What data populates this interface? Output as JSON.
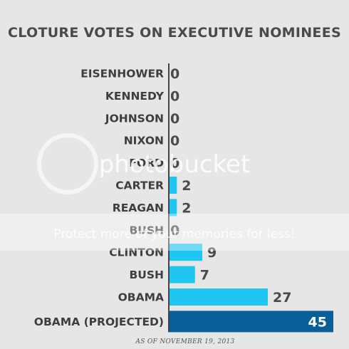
{
  "chart_data": {
    "type": "bar",
    "orientation": "horizontal",
    "title": "CLOTURE VOTES ON EXECUTIVE NOMINEES",
    "categories": [
      "EISENHOWER",
      "KENNEDY",
      "JOHNSON",
      "NIXON",
      "FORD",
      "CARTER",
      "REAGAN",
      "BUSH",
      "CLINTON",
      "BUSH",
      "OBAMA",
      "OBAMA (PROJECTED)"
    ],
    "values": [
      0,
      0,
      0,
      0,
      0,
      2,
      2,
      0,
      9,
      7,
      27,
      45
    ],
    "highlight_index": 11,
    "xlim": [
      0,
      45
    ],
    "xlabel": "",
    "ylabel": "",
    "grid": false,
    "colors": {
      "bar": "#1fc6f2",
      "highlight": "#0b5f99",
      "axis": "#444444"
    },
    "footnote": "AS OF NOVEMBER 19, 2013"
  },
  "watermark": {
    "brand": "photobucket",
    "tagline": "Protect more of your memories for less!"
  }
}
